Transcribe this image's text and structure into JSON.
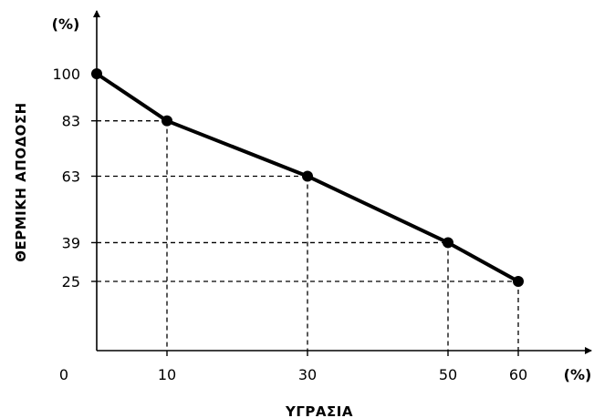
{
  "chart_data": {
    "type": "line",
    "x": [
      0,
      10,
      30,
      50,
      60
    ],
    "series": [
      {
        "values": [
          100,
          83,
          63,
          39,
          25
        ]
      }
    ],
    "xlabel": "ΥΓΡΑΣΙΑ",
    "ylabel": "ΘΕΡΜΙΚΗ ΑΠΟΔΟΣΗ",
    "x_unit": "(%)",
    "y_unit": "(%)",
    "x_ticks": [
      "0",
      "10",
      "30",
      "50",
      "60"
    ],
    "y_ticks": [
      "100",
      "83",
      "63",
      "39",
      "25"
    ],
    "xlim": [
      0,
      70
    ],
    "ylim": [
      0,
      120
    ],
    "grid": false,
    "guide_lines": "dashed",
    "line_color": "#000000"
  }
}
